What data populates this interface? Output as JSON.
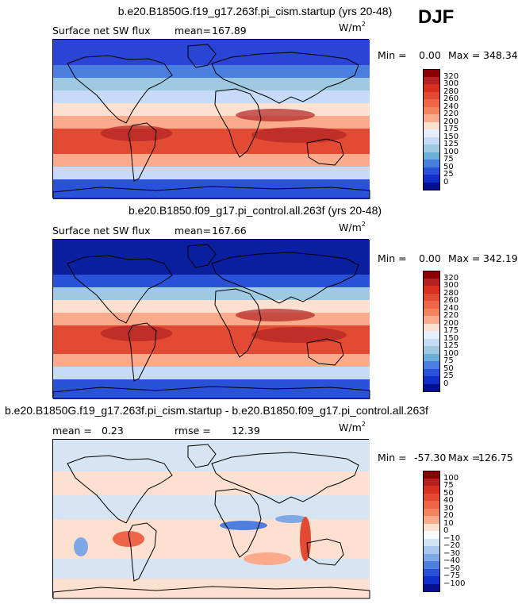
{
  "season": "DJF",
  "panels": [
    {
      "title": "b.e20.B1850G.f19_g17.263f.pi_cism.startup (yrs 20-48)",
      "variable": "Surface net SW flux",
      "stat1_label": "mean=",
      "stat1_value": "167.89",
      "stat2_label": "",
      "stat2_value": "",
      "units_base": "W/m",
      "units_exp": "2",
      "min_label": "Min =",
      "min_value": "0.00",
      "max_label": "Max =",
      "max_value": "348.34",
      "map_type": "absolute",
      "colorbar": {
        "labels": [
          "320",
          "300",
          "280",
          "260",
          "240",
          "220",
          "200",
          "175",
          "150",
          "125",
          "100",
          "75",
          "50",
          "25",
          "0"
        ],
        "colors": [
          "#8b0000",
          "#b22222",
          "#d7301f",
          "#e34a33",
          "#ef6548",
          "#f4845f",
          "#fbab8b",
          "#fde0cf",
          "#e6eefb",
          "#c6dbf7",
          "#9ecae1",
          "#6baed6",
          "#4a7fe0",
          "#2a52d9",
          "#1030c8",
          "#050f8f"
        ]
      }
    },
    {
      "title": "b.e20.B1850.f09_g17.pi_control.all.263f (yrs 20-48)",
      "variable": "Surface net SW flux",
      "stat1_label": "mean=",
      "stat1_value": "167.66",
      "stat2_label": "",
      "stat2_value": "",
      "units_base": "W/m",
      "units_exp": "2",
      "min_label": "Min =",
      "min_value": "0.00",
      "max_label": "Max =",
      "max_value": "342.19",
      "map_type": "absolute",
      "colorbar": {
        "labels": [
          "320",
          "300",
          "280",
          "260",
          "240",
          "220",
          "200",
          "175",
          "150",
          "125",
          "100",
          "75",
          "50",
          "25",
          "0"
        ],
        "colors": [
          "#8b0000",
          "#b22222",
          "#d7301f",
          "#e34a33",
          "#ef6548",
          "#f4845f",
          "#fbab8b",
          "#fde0cf",
          "#e6eefb",
          "#c6dbf7",
          "#9ecae1",
          "#6baed6",
          "#4a7fe0",
          "#2a52d9",
          "#1030c8",
          "#050f8f"
        ]
      }
    },
    {
      "title": "b.e20.B1850G.f19_g17.263f.pi_cism.startup - b.e20.B1850.f09_g17.pi_control.all.263f",
      "variable": "",
      "stat1_label": "mean =",
      "stat1_value": "0.23",
      "stat2_label": "rmse =",
      "stat2_value": "12.39",
      "units_base": "W/m",
      "units_exp": "2",
      "min_label": "Min =",
      "min_value": "-57.30",
      "max_label": "Max =",
      "max_value": "126.75",
      "map_type": "difference",
      "colorbar": {
        "labels": [
          "100",
          "75",
          "50",
          "40",
          "30",
          "20",
          "10",
          "0",
          "−10",
          "−20",
          "−30",
          "−40",
          "−50",
          "−75",
          "−100"
        ],
        "colors": [
          "#8b0000",
          "#b22222",
          "#d7301f",
          "#e34a33",
          "#ef6548",
          "#f4845f",
          "#fbab8b",
          "#fde0cf",
          "#f6fbff",
          "#d3e4f7",
          "#a9c8ef",
          "#7ea8e6",
          "#4f7fdc",
          "#2a52d9",
          "#1030c8",
          "#050f8f"
        ]
      }
    }
  ]
}
